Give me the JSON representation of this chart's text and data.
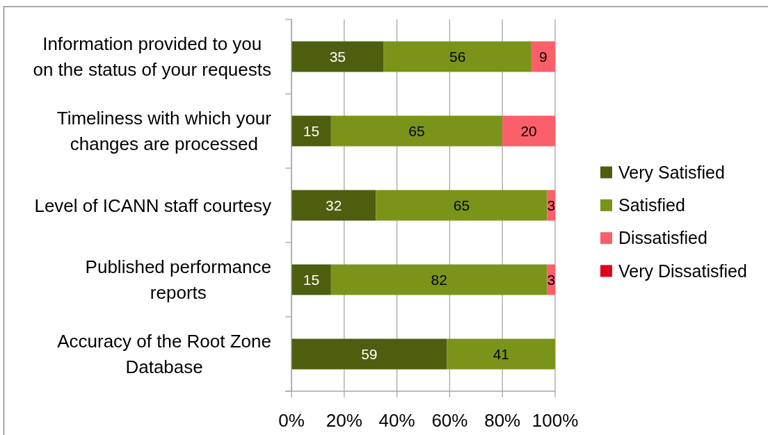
{
  "chart_data": {
    "type": "bar",
    "orientation": "horizontal",
    "stacked": true,
    "categories": [
      "Information provided to you on the status of your requests",
      "Timeliness with which your changes are processed",
      "Level of ICANN staff courtesy",
      "Published performance reports",
      "Accuracy of the Root Zone Database"
    ],
    "series": [
      {
        "name": "Very Satisfied",
        "color": "#4d5e0e",
        "values": [
          35,
          15,
          32,
          15,
          59
        ]
      },
      {
        "name": "Satisfied",
        "color": "#7a9419",
        "values": [
          56,
          65,
          65,
          82,
          41
        ]
      },
      {
        "name": "Dissatisfied",
        "color": "#fa5f6a",
        "values": [
          9,
          20,
          3,
          3,
          null
        ]
      },
      {
        "name": "Very Dissatisfied",
        "color": "#e0001a",
        "values": [
          null,
          null,
          null,
          null,
          null
        ]
      }
    ],
    "xlim": [
      0,
      100
    ],
    "xticks": [
      {
        "value": 0,
        "label": "0%"
      },
      {
        "value": 20,
        "label": "20%"
      },
      {
        "value": 40,
        "label": "40%"
      },
      {
        "value": 60,
        "label": "60%"
      },
      {
        "value": 80,
        "label": "80%"
      },
      {
        "value": 100,
        "label": "100%"
      }
    ],
    "grid": "x",
    "legend": "right",
    "data_labels": true
  }
}
